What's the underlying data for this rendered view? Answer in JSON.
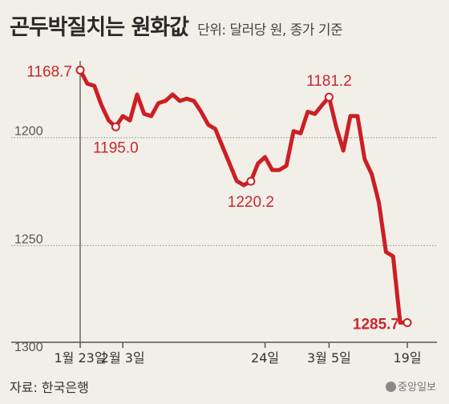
{
  "header": {
    "title": "곤두박질치는 원화값",
    "unit": "단위: 달러당 원, 종가 기준"
  },
  "source": "자료: 한국은행",
  "logo": "중앙일보",
  "colors": {
    "line": "#cc1f24",
    "label": "#c8282d",
    "axis": "#555555",
    "background": "#f2efe9"
  },
  "chart_data": {
    "type": "line",
    "title": "곤두박질치는 원화값",
    "unit": "달러당 원, 종가 기준",
    "y_axis": {
      "reversed": true,
      "ylim": [
        1300,
        1160
      ],
      "ticks": [
        1200,
        1250,
        1300
      ]
    },
    "x_ticks": [
      {
        "index": 0,
        "label": "1월 23일"
      },
      {
        "index": 6,
        "label": "2월 3일"
      },
      {
        "index": 26,
        "label": "24일"
      },
      {
        "index": 35,
        "label": "3월 5일"
      },
      {
        "index": 46,
        "label": "19일"
      }
    ],
    "values": [
      1168.7,
      1175,
      1176,
      1185,
      1192,
      1195.0,
      1190,
      1192,
      1180,
      1189,
      1190,
      1184,
      1183,
      1180,
      1183,
      1182,
      1183,
      1188,
      1194,
      1196,
      1204,
      1212,
      1220,
      1222,
      1220.2,
      1212,
      1209,
      1215,
      1215,
      1213,
      1197,
      1198,
      1188,
      1189,
      1185,
      1181.2,
      1195,
      1206,
      1190,
      1190,
      1210,
      1217,
      1230,
      1253,
      1255,
      1285.7,
      1285.7
    ],
    "annotations": [
      {
        "index": 0,
        "label": "1168.7",
        "pos": "left"
      },
      {
        "index": 5,
        "label": "1195.0",
        "pos": "below"
      },
      {
        "index": 24,
        "label": "1220.2",
        "pos": "below"
      },
      {
        "index": 35,
        "label": "1181.2",
        "pos": "above"
      },
      {
        "index": 46,
        "label": "1285.7",
        "pos": "left",
        "bold": true
      }
    ]
  }
}
